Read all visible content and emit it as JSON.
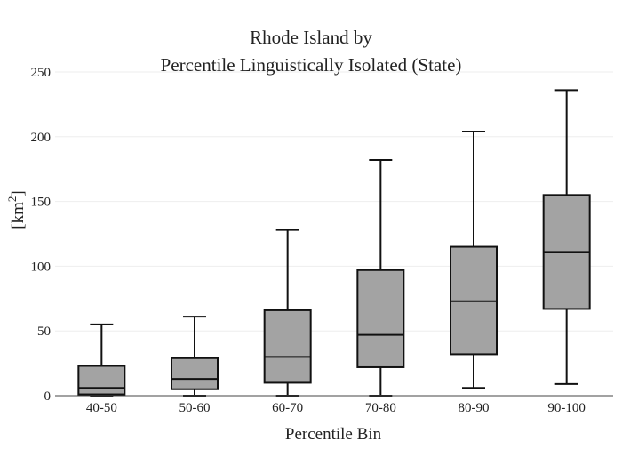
{
  "chart_data": {
    "type": "box",
    "title_line1": "Rhode Island  by",
    "title_line2": "Percentile Linguistically Isolated (State)",
    "xlabel": "Percentile Bin",
    "ylabel_base": "[km",
    "ylabel_sup": "2",
    "ylabel_end": "]",
    "ylim": [
      0,
      250
    ],
    "yticks": [
      0,
      50,
      100,
      150,
      200,
      250
    ],
    "grid": true,
    "categories": [
      "40-50",
      "50-60",
      "60-70",
      "70-80",
      "80-90",
      "90-100"
    ],
    "boxes": [
      {
        "category": "40-50",
        "min": 0,
        "q1": 1,
        "median": 6,
        "q3": 23,
        "max": 55
      },
      {
        "category": "50-60",
        "min": 0,
        "q1": 5,
        "median": 13,
        "q3": 29,
        "max": 61
      },
      {
        "category": "60-70",
        "min": 0,
        "q1": 10,
        "median": 30,
        "q3": 66,
        "max": 128
      },
      {
        "category": "70-80",
        "min": 0,
        "q1": 22,
        "median": 47,
        "q3": 97,
        "max": 182
      },
      {
        "category": "80-90",
        "min": 6,
        "q1": 32,
        "median": 73,
        "q3": 115,
        "max": 204
      },
      {
        "category": "90-100",
        "min": 9,
        "q1": 67,
        "median": 111,
        "q3": 155,
        "max": 236
      }
    ],
    "colors": {
      "box_fill": "#a3a3a3",
      "box_stroke": "#111111",
      "grid": "#eeeeee",
      "axis": "#444444"
    }
  }
}
